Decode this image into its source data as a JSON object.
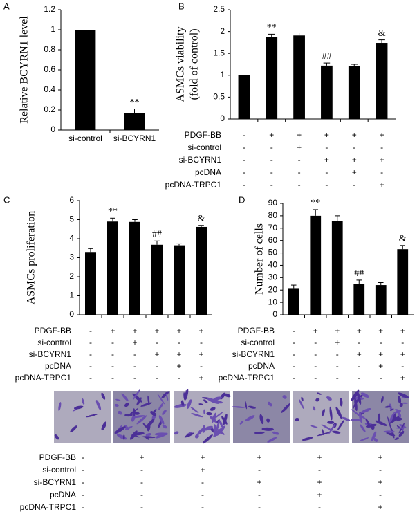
{
  "chart_data": [
    {
      "type": "bar",
      "panel": "A",
      "y_label": "Relative BCYRN1 level",
      "categories": [
        "si-control",
        "si-BCYRN1"
      ],
      "values": [
        1,
        0.17
      ],
      "errors": [
        0,
        0.04
      ],
      "annotations": [
        null,
        "**"
      ],
      "color": "#000000",
      "ylim": [
        0,
        1.2
      ],
      "yticks": [
        0,
        0.2,
        0.4,
        0.6,
        0.8,
        1,
        1.2
      ]
    },
    {
      "type": "bar",
      "panel": "B",
      "y_label": [
        "ASMCs viability",
        "(fold of control)"
      ],
      "categories": [
        null,
        null,
        null,
        null,
        null,
        null
      ],
      "values": [
        1,
        1.88,
        1.91,
        1.22,
        1.21,
        1.74
      ],
      "errors": [
        0,
        0.06,
        0.06,
        0.06,
        0.04,
        0.07
      ],
      "annotations": [
        null,
        "**",
        null,
        "##",
        null,
        "&"
      ],
      "color": "#000000",
      "ylim": [
        0,
        2.5
      ],
      "yticks": [
        0,
        0.5,
        1,
        1.5,
        2,
        2.5
      ],
      "conditions": [
        {
          "label": "PDGF-BB",
          "signs": [
            "-",
            "+",
            "+",
            "+",
            "+",
            "+"
          ]
        },
        {
          "label": "si-control",
          "signs": [
            "-",
            "-",
            "+",
            "-",
            "-",
            "-"
          ]
        },
        {
          "label": "si-BCYRN1",
          "signs": [
            "-",
            "-",
            "-",
            "+",
            "+",
            "+"
          ]
        },
        {
          "label": "pcDNA",
          "signs": [
            "-",
            "-",
            "-",
            "-",
            "+",
            "-"
          ]
        },
        {
          "label": "pcDNA-TRPC1",
          "signs": [
            "-",
            "-",
            "-",
            "-",
            "-",
            "+"
          ]
        }
      ]
    },
    {
      "type": "bar",
      "panel": "C",
      "y_label": "ASMCs proliferation",
      "categories": [
        null,
        null,
        null,
        null,
        null,
        null
      ],
      "values": [
        3.3,
        4.9,
        4.88,
        3.68,
        3.65,
        4.62
      ],
      "errors": [
        0.18,
        0.18,
        0.12,
        0.2,
        0.08,
        0.08
      ],
      "annotations": [
        null,
        "**",
        null,
        "##",
        null,
        "&"
      ],
      "color": "#000000",
      "ylim": [
        0,
        6
      ],
      "yticks": [
        0,
        1,
        2,
        3,
        4,
        5,
        6
      ],
      "conditions": [
        {
          "label": "PDGF-BB",
          "signs": [
            "-",
            "+",
            "+",
            "+",
            "+",
            "+"
          ]
        },
        {
          "label": "si-control",
          "signs": [
            "-",
            "-",
            "+",
            "-",
            "-",
            "-"
          ]
        },
        {
          "label": "si-BCYRN1",
          "signs": [
            "-",
            "-",
            "-",
            "+",
            "+",
            "+"
          ]
        },
        {
          "label": "pcDNA",
          "signs": [
            "-",
            "-",
            "-",
            "-",
            "+",
            "-"
          ]
        },
        {
          "label": "pcDNA-TRPC1",
          "signs": [
            "-",
            "-",
            "-",
            "-",
            "-",
            "+"
          ]
        }
      ]
    },
    {
      "type": "bar",
      "panel": "D",
      "y_label": "Number of cells",
      "categories": [
        null,
        null,
        null,
        null,
        null,
        null
      ],
      "values": [
        21,
        80,
        76,
        25,
        24,
        53
      ],
      "errors": [
        3,
        5,
        4,
        3,
        2,
        3
      ],
      "annotations": [
        null,
        "**",
        null,
        "##",
        null,
        "&"
      ],
      "color": "#000000",
      "ylim": [
        0,
        90
      ],
      "yticks": [
        0,
        10,
        20,
        30,
        40,
        50,
        60,
        70,
        80,
        90
      ],
      "conditions": [
        {
          "label": "PDGF-BB",
          "signs": [
            "-",
            "+",
            "+",
            "+",
            "+",
            "+"
          ]
        },
        {
          "label": "si-control",
          "signs": [
            "-",
            "-",
            "+",
            "-",
            "-",
            "-"
          ]
        },
        {
          "label": "si-BCYRN1",
          "signs": [
            "-",
            "-",
            "-",
            "+",
            "+",
            "+"
          ]
        },
        {
          "label": "pcDNA",
          "signs": [
            "-",
            "-",
            "-",
            "-",
            "+",
            "-"
          ]
        },
        {
          "label": "pcDNA-TRPC1",
          "signs": [
            "-",
            "-",
            "-",
            "-",
            "-",
            "+"
          ]
        }
      ]
    }
  ],
  "micrographs": {
    "conditions": [
      {
        "label": "PDGF-BB",
        "signs": [
          "-",
          "+",
          "+",
          "+",
          "+",
          "+"
        ]
      },
      {
        "label": "si-control",
        "signs": [
          "-",
          "-",
          "+",
          "-",
          "-",
          "-"
        ]
      },
      {
        "label": "si-BCYRN1",
        "signs": [
          "-",
          "-",
          "-",
          "+",
          "+",
          "+"
        ]
      },
      {
        "label": "pcDNA",
        "signs": [
          "-",
          "-",
          "-",
          "-",
          "+",
          "-"
        ]
      },
      {
        "label": "pcDNA-TRPC1",
        "signs": [
          "-",
          "-",
          "-",
          "-",
          "-",
          "+"
        ]
      }
    ]
  }
}
